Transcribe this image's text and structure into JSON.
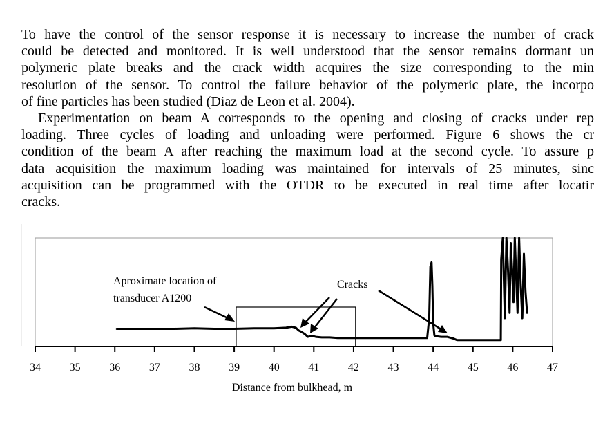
{
  "paragraphs": [
    {
      "lines": [
        "To have the control of the sensor response it is necessary to increase the number of crack",
        "could be detected and monitored. It is well understood that the sensor remains dormant un",
        "polymeric plate breaks and the crack width acquires the size corresponding to the min",
        "resolution of the sensor. To control the failure behavior of the polymeric plate, the incorpo",
        "of fine particles has been studied (Diaz de Leon et al. 2004)."
      ]
    },
    {
      "lines": [
        "Experimentation on beam A corresponds to the opening and closing of cracks under rep",
        "loading. Three cycles of loading and unloading were performed. Figure 6 shows the cr",
        "condition of the beam A after reaching the maximum load at the second cycle. To assure p",
        "data acquisition the maximum loading was maintained for intervals of 25 minutes, sinc",
        "acquisition can be programmed with the OTDR to be executed in real time after locatir",
        "cracks."
      ]
    }
  ],
  "chart_data": {
    "type": "line",
    "xlabel": "Distance from bulkhead, m",
    "ylabel": "",
    "xlim": [
      34,
      47
    ],
    "x_ticks": [
      "34",
      "35",
      "36",
      "37",
      "38",
      "39",
      "40",
      "41",
      "42",
      "43",
      "44",
      "45",
      "46",
      "47"
    ],
    "grid": false,
    "annotations": {
      "transducer_line1": "Aproximate location of",
      "transducer_line2": "transducer A1200",
      "cracks": "Cracks"
    },
    "highlight_box_x": [
      39.05,
      42.05
    ],
    "series": [
      {
        "x": [
          36.05,
          36.5,
          37.0,
          37.5,
          38.0,
          38.5,
          39.0,
          39.5,
          40.0,
          40.3,
          40.45,
          40.55,
          40.62,
          40.7,
          40.78,
          40.85,
          40.95,
          41.05,
          41.2,
          41.4,
          41.6,
          41.8,
          42.0,
          42.5,
          43.0,
          43.5,
          43.85,
          43.9,
          43.93,
          43.96,
          43.98,
          44.0,
          44.03,
          44.06,
          44.1,
          44.2,
          44.35,
          44.5,
          44.6,
          44.7,
          45.0,
          45.3,
          45.5,
          45.7,
          45.71,
          45.75,
          45.8,
          45.84,
          45.88,
          45.92,
          45.95,
          45.99,
          46.02,
          46.05,
          46.08,
          46.12,
          46.16,
          46.2,
          46.24,
          46.28,
          46.32,
          46.36
        ],
        "y": [
          1.0,
          1.0,
          1.0,
          1.0,
          1.05,
          1.0,
          1.0,
          1.05,
          1.05,
          1.1,
          1.2,
          1.1,
          0.85,
          0.7,
          0.5,
          0.25,
          0.35,
          0.25,
          0.2,
          0.2,
          0.15,
          0.15,
          0.15,
          0.15,
          0.15,
          0.15,
          0.15,
          2.0,
          6.8,
          7.2,
          5.0,
          1.5,
          0.4,
          0.3,
          0.3,
          0.25,
          0.25,
          0.1,
          -0.05,
          -0.05,
          -0.05,
          -0.05,
          -0.05,
          -0.05,
          7.5,
          9.5,
          2.0,
          9.5,
          6.5,
          2.5,
          9.0,
          6.0,
          3.5,
          9.5,
          6.5,
          2.5,
          9.5,
          5.0,
          2.0,
          8.0,
          4.5,
          2.5
        ]
      }
    ]
  }
}
